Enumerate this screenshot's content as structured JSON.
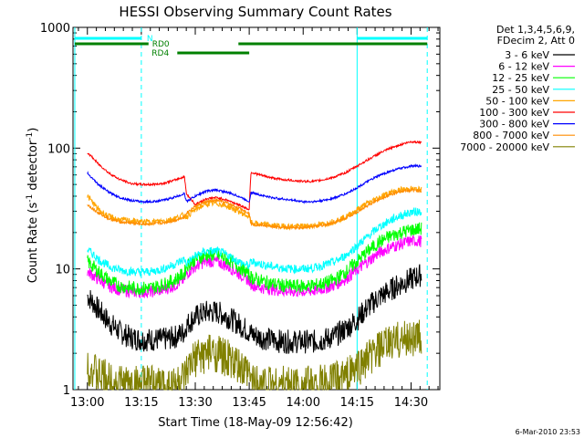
{
  "chart_data": {
    "type": "line",
    "title": "HESSI Observing Summary Count Rates",
    "xlabel": "Start Time (18-May-09 12:56:42)",
    "ylabel_main": "Count Rate (s",
    "ylabel_sup1": "-1",
    "ylabel_mid": " detector",
    "ylabel_sup2": "-1",
    "ylabel_end": ")",
    "yscale": "log",
    "xlim_minutes": [
      -4,
      98
    ],
    "ylim": [
      1,
      1000
    ],
    "x_ticks": [
      {
        "label": "13:00",
        "t": 0
      },
      {
        "label": "13:15",
        "t": 15
      },
      {
        "label": "13:30",
        "t": 30
      },
      {
        "label": "13:45",
        "t": 45
      },
      {
        "label": "14:00",
        "t": 60
      },
      {
        "label": "14:15",
        "t": 75
      },
      {
        "label": "14:30",
        "t": 90
      }
    ],
    "y_ticks": [
      {
        "label": "1",
        "v": 1
      },
      {
        "label": "10",
        "v": 10
      },
      {
        "label": "100",
        "v": 100
      },
      {
        "label": "1000",
        "v": 1000
      }
    ],
    "legend_header": [
      "Det 1,3,4,5,6,9,",
      "FDecim 2, Att 0"
    ],
    "legend_placement": "right",
    "series": [
      {
        "name": "3 - 6 keV",
        "color": "#000000",
        "x": [
          0,
          3,
          6,
          9,
          12,
          15,
          18,
          21,
          24,
          27,
          27.5,
          30,
          33,
          36,
          39,
          42,
          45,
          45.5,
          48,
          51,
          54,
          57,
          60,
          63,
          66,
          69,
          72,
          75,
          78,
          81,
          84,
          87,
          90,
          93
        ],
        "y": [
          6,
          4.6,
          3.6,
          3.0,
          2.7,
          2.6,
          2.6,
          2.6,
          2.7,
          3.0,
          3.4,
          4.0,
          4.4,
          4.4,
          4.0,
          3.5,
          3.0,
          2.9,
          2.7,
          2.6,
          2.5,
          2.5,
          2.5,
          2.5,
          2.6,
          2.8,
          3.2,
          3.8,
          4.8,
          5.8,
          6.6,
          7.5,
          8.2,
          9.0
        ]
      },
      {
        "name": "6 - 12 keV",
        "color": "#ff00ff",
        "x": [
          0,
          3,
          6,
          9,
          12,
          15,
          18,
          21,
          24,
          27,
          27.5,
          30,
          33,
          36,
          39,
          42,
          45,
          45.5,
          48,
          51,
          54,
          57,
          60,
          63,
          66,
          69,
          72,
          75,
          78,
          81,
          84,
          87,
          90,
          93
        ],
        "y": [
          9.5,
          8.2,
          7.2,
          6.7,
          6.5,
          6.4,
          6.5,
          6.7,
          7.2,
          8.2,
          9.0,
          10.5,
          11.5,
          11.5,
          10.5,
          9.2,
          8.0,
          7.5,
          7.0,
          6.8,
          6.6,
          6.5,
          6.5,
          6.6,
          6.9,
          7.4,
          8.3,
          9.8,
          11.5,
          13.5,
          15.0,
          16.0,
          17.0,
          17.0
        ]
      },
      {
        "name": "12 - 25 keV",
        "color": "#00ff00",
        "x": [
          0,
          3,
          6,
          9,
          12,
          15,
          18,
          21,
          24,
          27,
          27.5,
          30,
          33,
          36,
          39,
          42,
          45,
          45.5,
          48,
          51,
          54,
          57,
          60,
          63,
          66,
          69,
          72,
          75,
          78,
          81,
          84,
          87,
          90,
          93
        ],
        "y": [
          11.5,
          9.5,
          8.0,
          7.2,
          7.0,
          6.9,
          7.0,
          7.4,
          8.0,
          9.2,
          10.5,
          12.0,
          13.0,
          13.0,
          12.0,
          10.5,
          9.0,
          8.5,
          8.0,
          7.6,
          7.3,
          7.2,
          7.2,
          7.3,
          7.6,
          8.2,
          9.5,
          11.5,
          14.0,
          16.5,
          18.5,
          20.0,
          21.0,
          21.5
        ]
      },
      {
        "name": "25 - 50 keV",
        "color": "#00ffff",
        "x": [
          0,
          3,
          6,
          9,
          12,
          15,
          18,
          21,
          24,
          27,
          27.5,
          30,
          33,
          36,
          39,
          42,
          45,
          45.5,
          48,
          51,
          54,
          57,
          60,
          63,
          66,
          69,
          72,
          75,
          78,
          81,
          84,
          87,
          90,
          93
        ],
        "y": [
          14.5,
          12.0,
          10.5,
          9.8,
          9.5,
          9.4,
          9.5,
          10.0,
          10.8,
          12.0,
          11.0,
          12.8,
          14.0,
          14.0,
          13.0,
          11.5,
          10.5,
          11.5,
          11.0,
          10.5,
          10.2,
          10.0,
          10.0,
          10.2,
          10.8,
          11.5,
          13.0,
          15.5,
          18.5,
          22.0,
          25.0,
          27.5,
          29.5,
          30.0
        ]
      },
      {
        "name": "50 - 100 keV",
        "color": "#ffa500",
        "x": [
          0,
          3,
          6,
          9,
          12,
          15,
          18,
          21,
          24,
          27,
          27.5,
          30,
          33,
          36,
          39,
          42,
          45,
          45.5,
          48,
          51,
          54,
          57,
          60,
          63,
          66,
          69,
          72,
          75,
          78,
          81,
          84,
          87,
          90,
          93
        ],
        "y": [
          40,
          31,
          27,
          25.5,
          25,
          24.5,
          24.5,
          25,
          26,
          28,
          27,
          31,
          34.5,
          35,
          33,
          30,
          27,
          24,
          23.5,
          23,
          22.5,
          22.5,
          22.5,
          23,
          23.5,
          25,
          27,
          31,
          35,
          39,
          42.5,
          45,
          46,
          45
        ]
      },
      {
        "name": "100 - 300 keV",
        "color": "#ff0000",
        "x": [
          0,
          3,
          6,
          9,
          12,
          15,
          18,
          21,
          24,
          27,
          27.5,
          30,
          33,
          36,
          39,
          42,
          45,
          45.5,
          48,
          51,
          54,
          57,
          60,
          63,
          66,
          69,
          72,
          75,
          78,
          81,
          84,
          87,
          90,
          93
        ],
        "y": [
          92,
          74,
          62,
          55,
          51,
          50,
          50,
          51,
          54,
          58,
          42,
          34,
          38,
          39,
          37,
          34,
          31,
          63,
          60,
          57,
          55,
          54,
          53,
          53,
          55,
          58,
          63,
          71,
          80,
          90,
          99,
          107,
          113,
          112
        ]
      },
      {
        "name": "300 - 800 keV",
        "color": "#0000ff",
        "x": [
          0,
          3,
          6,
          9,
          12,
          15,
          18,
          21,
          24,
          27,
          27.5,
          30,
          33,
          36,
          39,
          42,
          45,
          45.5,
          48,
          51,
          54,
          57,
          60,
          63,
          66,
          69,
          72,
          75,
          78,
          81,
          84,
          87,
          90,
          93
        ],
        "y": [
          62,
          50,
          43,
          39,
          37,
          36,
          36,
          37,
          39,
          42,
          36,
          40,
          44,
          45,
          43,
          40,
          36,
          43,
          41,
          39,
          38,
          37,
          36,
          36,
          37,
          39,
          42,
          47,
          53,
          59,
          64,
          68,
          71,
          71
        ]
      },
      {
        "name": "800 - 7000 keV",
        "color": "#ff8c00",
        "x": [
          0,
          3,
          6,
          9,
          12,
          15,
          18,
          21,
          24,
          27,
          27.5,
          30,
          33,
          36,
          39,
          42,
          45,
          45.5,
          48,
          51,
          54,
          57,
          60,
          63,
          66,
          69,
          72,
          75,
          78,
          81,
          84,
          87,
          90,
          93
        ],
        "y": [
          34,
          29,
          26,
          24.5,
          24,
          23.5,
          23.5,
          24,
          25,
          27,
          29,
          33,
          36,
          37,
          35,
          32,
          29,
          23.5,
          23,
          22.5,
          22,
          22,
          22,
          22.5,
          23,
          24.5,
          26.5,
          29.5,
          33.5,
          37.5,
          41,
          43.5,
          45,
          44
        ]
      },
      {
        "name": "7000 - 20000 keV",
        "color": "#808000",
        "x": [
          0,
          3,
          6,
          9,
          12,
          15,
          18,
          21,
          24,
          27,
          27.5,
          30,
          33,
          36,
          39,
          42,
          45,
          45.5,
          48,
          51,
          54,
          57,
          60,
          63,
          66,
          69,
          72,
          75,
          78,
          81,
          84,
          87,
          90,
          93
        ],
        "y": [
          1.6,
          1.3,
          1.2,
          1.15,
          1.1,
          1.1,
          1.1,
          1.1,
          1.12,
          1.18,
          1.3,
          1.8,
          2.0,
          2.0,
          1.8,
          1.5,
          1.3,
          1.2,
          1.15,
          1.12,
          1.1,
          1.1,
          1.1,
          1.1,
          1.12,
          1.2,
          1.3,
          1.5,
          1.8,
          2.1,
          2.4,
          2.6,
          2.7,
          2.7
        ]
      }
    ],
    "vertical_lines_minutes": [
      -3.5,
      15,
      75,
      94.5
    ],
    "vertical_line_color": "#00ffff",
    "flag_bars": [
      {
        "label": "N",
        "color": "#00ffff",
        "segments": [
          [
            -3.5,
            15
          ],
          [
            75,
            94.5
          ]
        ],
        "level": "upper"
      },
      {
        "label": "RD0",
        "color": "#008000",
        "segments": [
          [
            -3.5,
            94.5
          ]
        ],
        "gap": [
          25,
          45
        ],
        "level": "middle"
      },
      {
        "label": "RD4",
        "color": "#008000",
        "segments": [
          [
            25,
            45
          ]
        ],
        "level": "lower"
      }
    ],
    "footer_date": "6-Mar-2010 23:53"
  }
}
